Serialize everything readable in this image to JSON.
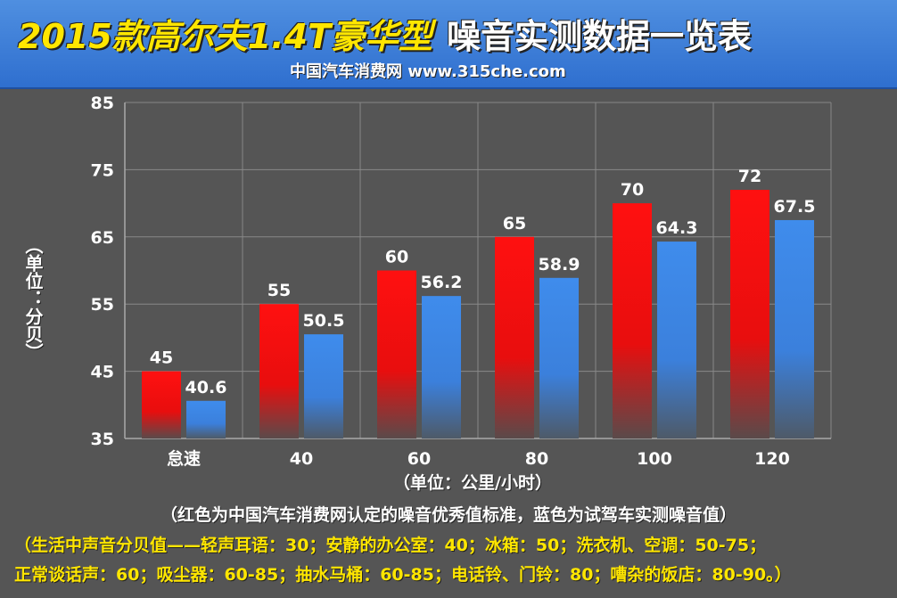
{
  "header": {
    "title_left": "2015款高尔夫1.4T豪华型",
    "title_right": "噪音实测数据一览表",
    "subtitle": "中国汽车消费网  www.315che.com"
  },
  "colors": {
    "standard": "#ee1111",
    "measured": "#3f88e8",
    "plot_bg": "#555555",
    "grid": "#888888"
  },
  "notes": {
    "legend_note": "（红色为中国汽车消费网认定的噪音优秀值标准，蓝色为试驾车实测噪音值）",
    "reference_line1": "（生活中声音分贝值——轻声耳语：30；安静的办公室：40；冰箱：50；洗衣机、空调：50-75；",
    "reference_line2": "正常谈话声：60；吸尘器：60-85；抽水马桶：60-85；电话铃、门铃：80；嘈杂的饭店：80-90。）"
  },
  "chart_data": {
    "type": "bar",
    "title": "2015款高尔夫1.4T豪华型 噪音实测数据一览表",
    "ylabel": "（单位：分贝）",
    "xlabel": "（单位：公里/小时）",
    "categories": [
      "怠速",
      "40",
      "60",
      "80",
      "100",
      "120"
    ],
    "ylim": [
      35,
      85
    ],
    "yticks": [
      35,
      45,
      55,
      65,
      75,
      85
    ],
    "grid": true,
    "series": [
      {
        "values": [
          45,
          55,
          60,
          65,
          70,
          72
        ],
        "labels": [
          "45",
          "55",
          "60",
          "65",
          "70",
          "72"
        ]
      },
      {
        "values": [
          40.6,
          50.5,
          56.2,
          58.9,
          64.3,
          67.5
        ],
        "labels": [
          "40.6",
          "50.5",
          "56.2",
          "58.9",
          "64.3",
          "67.5"
        ]
      }
    ]
  }
}
